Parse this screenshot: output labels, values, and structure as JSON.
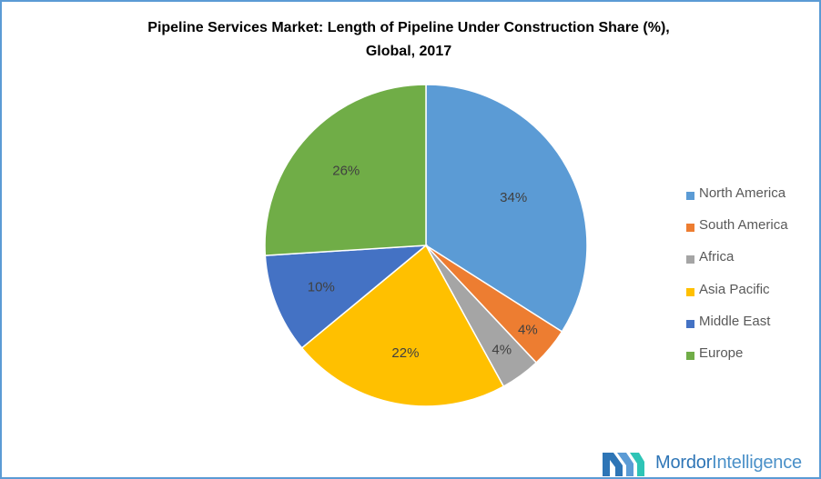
{
  "title": {
    "line1": "Pipeline Services Market: Length of Pipeline Under Construction  Share (%),",
    "line2": "Global, 2017"
  },
  "chart_data": {
    "type": "pie",
    "title": "Pipeline Services Market: Length of Pipeline Under Construction  Share (%), Global, 2017",
    "slices": [
      {
        "name": "North America",
        "value": 34,
        "label": "34%",
        "color": "#5b9bd5"
      },
      {
        "name": "South America",
        "value": 4,
        "label": "4%",
        "color": "#ed7d31"
      },
      {
        "name": "Africa",
        "value": 4,
        "label": "4%",
        "color": "#a5a5a5"
      },
      {
        "name": "Asia Pacific",
        "value": 22,
        "label": "22%",
        "color": "#ffc000"
      },
      {
        "name": "Middle East",
        "value": 10,
        "label": "10%",
        "color": "#4472c4"
      },
      {
        "name": "Europe",
        "value": 26,
        "label": "26%",
        "color": "#70ad47"
      }
    ],
    "legend_position": "right"
  },
  "brand": {
    "name_bold": "Mordor",
    "name_light": "Intelligence"
  }
}
